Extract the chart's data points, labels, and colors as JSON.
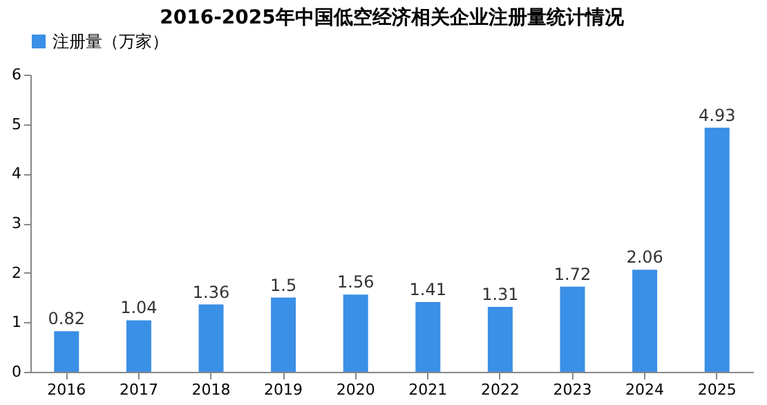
{
  "chart_data": {
    "type": "bar",
    "title": "2016-2025年中国低空经济相关企业注册量统计情况",
    "categories": [
      "2016",
      "2017",
      "2018",
      "2019",
      "2020",
      "2021",
      "2022",
      "2023",
      "2024",
      "2025"
    ],
    "series": [
      {
        "name": "注册量（万家）",
        "color": "#3a8fe6",
        "values": [
          0.82,
          1.04,
          1.36,
          1.5,
          1.56,
          1.41,
          1.31,
          1.72,
          2.06,
          4.93
        ]
      }
    ],
    "ylim": [
      0,
      6
    ],
    "yticks": [
      0,
      1,
      2,
      3,
      4,
      5,
      6
    ],
    "grid": false,
    "legend": "top",
    "data_labels": true
  }
}
